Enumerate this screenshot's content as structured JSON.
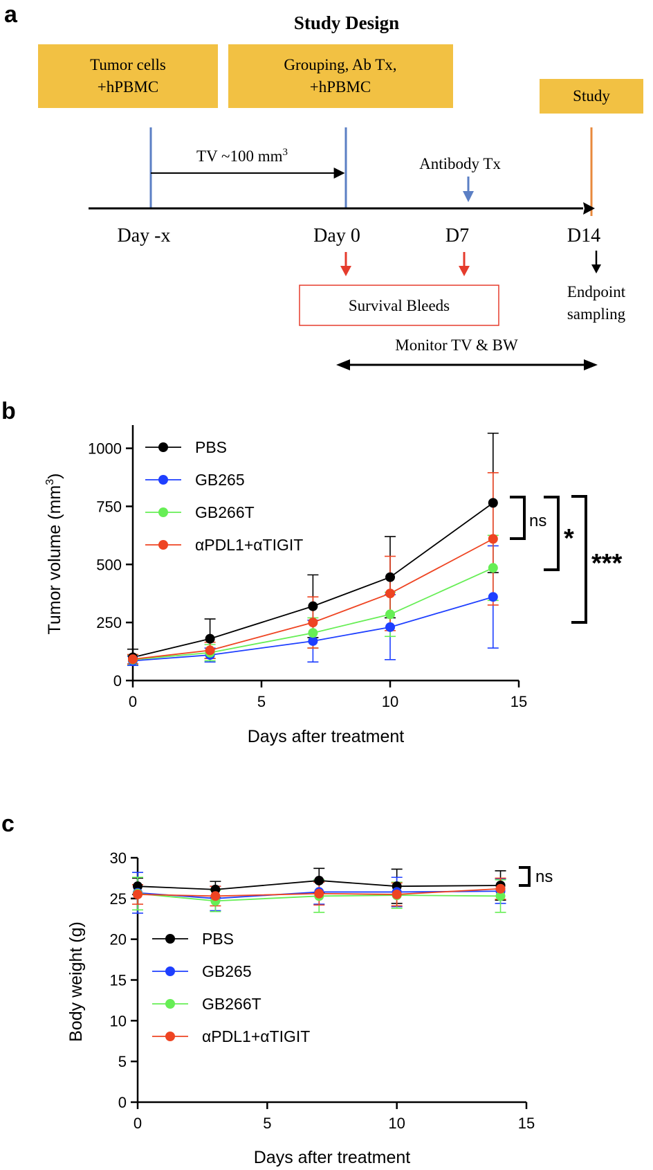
{
  "panel_a": {
    "letter": "a",
    "title": "Study Design",
    "boxes": [
      {
        "line1": "Tumor cells",
        "line2": "+hPBMC"
      },
      {
        "line1": "Grouping, Ab Tx,",
        "line2": "+hPBMC"
      },
      {
        "line1": "Study",
        "line2": ""
      }
    ],
    "tv_label": "TV ~100 mm",
    "tv_sup": "3",
    "antibody_label": "Antibody Tx",
    "days": [
      "Day -x",
      "Day 0",
      "D7",
      "D14"
    ],
    "bleeds_label": "Survival Bleeds",
    "endpoint_line1": "Endpoint",
    "endpoint_line2": "sampling",
    "monitor_label": "Monitor TV & BW",
    "colors": {
      "box": "#F2C143",
      "blue_line": "#5B7FC4",
      "orange_line": "#E8893C",
      "red": "#E53B2C"
    }
  },
  "panel_b": {
    "letter": "b",
    "sig": [
      "ns",
      "*",
      "***"
    ]
  },
  "panel_c": {
    "letter": "c",
    "sig": [
      "ns"
    ]
  },
  "chart_data": [
    {
      "type": "line",
      "xlabel": "Days after treatment",
      "ylabel": "Tumor volume (mm",
      "ylabel_sup": "3",
      "ylabel_end": ")",
      "xlim": [
        0,
        15
      ],
      "ylim": [
        0,
        1100
      ],
      "xticks": [
        0,
        5,
        10,
        15
      ],
      "yticks": [
        0,
        250,
        500,
        750,
        1000
      ],
      "x": [
        0,
        3,
        7,
        10,
        14
      ],
      "legend_position": "top-left",
      "series": [
        {
          "name": "PBS",
          "color": "#000000",
          "values": [
            100,
            180,
            320,
            445,
            765
          ],
          "err": [
            35,
            85,
            135,
            175,
            300
          ]
        },
        {
          "name": "GB265",
          "color": "#1E3FFF",
          "values": [
            85,
            110,
            170,
            230,
            360
          ],
          "err": [
            20,
            30,
            90,
            140,
            220
          ]
        },
        {
          "name": "GB266T",
          "color": "#66EE55",
          "values": [
            90,
            120,
            205,
            285,
            485
          ],
          "err": [
            20,
            35,
            65,
            95,
            140
          ]
        },
        {
          "name": "αPDL1+αTIGIT",
          "color": "#EE4422",
          "values": [
            92,
            130,
            250,
            375,
            610
          ],
          "err": [
            20,
            35,
            110,
            160,
            285
          ]
        }
      ]
    },
    {
      "type": "line",
      "xlabel": "Days after treatment",
      "ylabel": "Body weight (g)",
      "xlim": [
        0,
        15
      ],
      "ylim": [
        0,
        30
      ],
      "xticks": [
        0,
        5,
        10,
        15
      ],
      "yticks": [
        0,
        5,
        10,
        15,
        20,
        25,
        30
      ],
      "x": [
        0,
        3,
        7,
        10,
        14
      ],
      "legend_position": "middle-left",
      "series": [
        {
          "name": "PBS",
          "color": "#000000",
          "values": [
            26.5,
            26.1,
            27.2,
            26.5,
            26.6
          ],
          "err": [
            1.0,
            1.0,
            1.5,
            2.1,
            1.8
          ]
        },
        {
          "name": "GB265",
          "color": "#1E3FFF",
          "values": [
            25.7,
            25.0,
            25.8,
            25.8,
            25.9
          ],
          "err": [
            2.5,
            1.5,
            1.5,
            1.8,
            1.5
          ]
        },
        {
          "name": "GB266T",
          "color": "#66EE55",
          "values": [
            25.6,
            24.7,
            25.3,
            25.4,
            25.3
          ],
          "err": [
            2.0,
            1.3,
            2.0,
            1.6,
            2.0
          ]
        },
        {
          "name": "αPDL1+αTIGIT",
          "color": "#EE4422",
          "values": [
            25.5,
            25.3,
            25.6,
            25.5,
            26.2
          ],
          "err": [
            1.2,
            1.2,
            1.4,
            1.4,
            1.3
          ]
        }
      ]
    }
  ]
}
